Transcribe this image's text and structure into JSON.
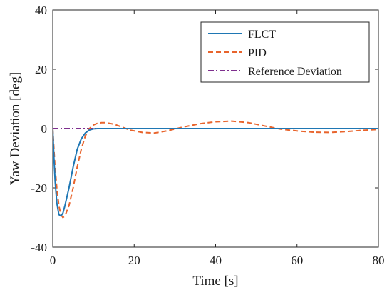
{
  "chart_data": {
    "type": "line",
    "xlabel": "Time [s]",
    "ylabel": "Yaw Deviation [deg]",
    "xlim": [
      0,
      80
    ],
    "ylim": [
      -40,
      40
    ],
    "xticks": [
      0,
      20,
      40,
      60,
      80
    ],
    "yticks": [
      -40,
      -20,
      0,
      20,
      40
    ],
    "grid": false,
    "legend_position": "top-right",
    "series": [
      {
        "name": "FLCT",
        "color": "#1f77b4",
        "style": "solid",
        "x": [
          0,
          0.3,
          0.6,
          1,
          1.5,
          2,
          2.5,
          3,
          4,
          5,
          6,
          7,
          8,
          9,
          10,
          11,
          12,
          14,
          16,
          20,
          30,
          40,
          50,
          60,
          70,
          80
        ],
        "y": [
          0,
          -10,
          -18,
          -25,
          -29,
          -29.5,
          -28.5,
          -26,
          -20,
          -13,
          -7,
          -3.5,
          -1.5,
          -0.5,
          -0.1,
          0,
          0,
          0,
          0,
          0,
          0,
          0,
          0,
          0,
          0,
          0
        ]
      },
      {
        "name": "PID",
        "color": "#e8642c",
        "style": "dashed",
        "x": [
          0,
          0.5,
          1,
          1.5,
          2,
          2.5,
          3,
          4,
          5,
          6,
          7,
          8,
          9,
          10,
          11,
          12,
          13,
          15,
          17,
          19,
          22,
          25,
          28,
          32,
          36,
          40,
          44,
          48,
          52,
          56,
          60,
          64,
          68,
          72,
          76,
          80
        ],
        "y": [
          0,
          -12,
          -20,
          -26,
          -29,
          -30,
          -29.5,
          -26,
          -20,
          -13,
          -7,
          -2.5,
          0,
          1.2,
          1.8,
          2,
          2,
          1.5,
          0.5,
          -0.5,
          -1.3,
          -1.5,
          -0.8,
          0.5,
          1.6,
          2.3,
          2.5,
          2,
          0.9,
          -0.2,
          -0.8,
          -1.2,
          -1.3,
          -1,
          -0.6,
          -0.3
        ]
      },
      {
        "name": "Reference Deviation",
        "color": "#7e2f8e",
        "style": "dashdot",
        "x": [
          0,
          80
        ],
        "y": [
          0,
          0
        ]
      }
    ]
  }
}
